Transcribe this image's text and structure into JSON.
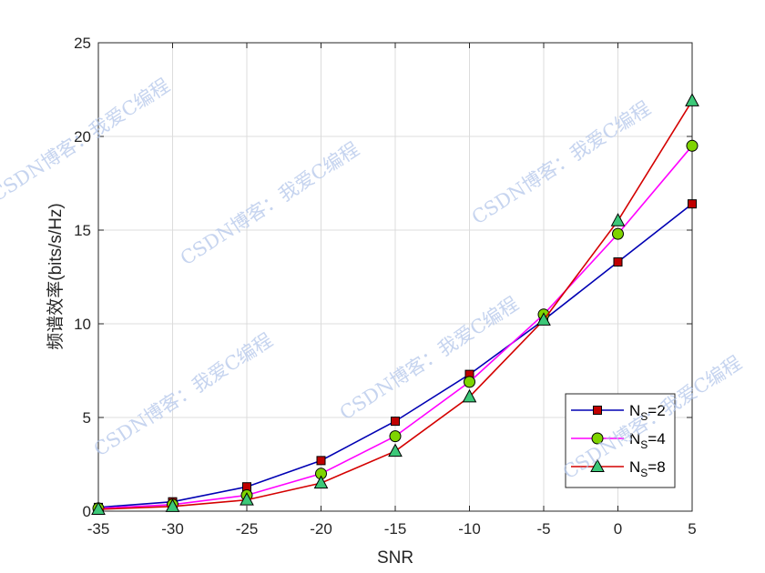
{
  "chart_data": {
    "type": "line",
    "xlabel": "SNR",
    "ylabel": "频谱效率(bits/s/Hz)",
    "xlim": [
      -35,
      5
    ],
    "ylim": [
      0,
      25
    ],
    "xticks": [
      -35,
      -30,
      -25,
      -20,
      -15,
      -10,
      -5,
      0,
      5
    ],
    "yticks": [
      0,
      5,
      10,
      15,
      20,
      25
    ],
    "grid": true,
    "legend_position": "bottom-right",
    "x": [
      -35,
      -30,
      -25,
      -20,
      -15,
      -10,
      -5,
      0,
      5
    ],
    "series": [
      {
        "label_main": "N",
        "label_sub": "S",
        "label_rest": "=2",
        "color": "#0000b3",
        "marker": "square",
        "marker_fill": "#c00000",
        "values": [
          0.2,
          0.5,
          1.3,
          2.7,
          4.8,
          7.3,
          10.2,
          13.3,
          16.4
        ]
      },
      {
        "label_main": "N",
        "label_sub": "S",
        "label_rest": "=4",
        "color": "#ff00ff",
        "marker": "circle",
        "marker_fill": "#7fd400",
        "values": [
          0.15,
          0.35,
          0.85,
          2.0,
          4.0,
          6.9,
          10.5,
          14.8,
          19.5
        ]
      },
      {
        "label_main": "N",
        "label_sub": "S",
        "label_rest": "=8",
        "color": "#d40000",
        "marker": "triangle",
        "marker_fill": "#3cc878",
        "values": [
          0.1,
          0.25,
          0.6,
          1.5,
          3.2,
          6.1,
          10.2,
          15.5,
          21.9
        ]
      }
    ]
  },
  "watermark": "CSDN博客：我爱C编程"
}
